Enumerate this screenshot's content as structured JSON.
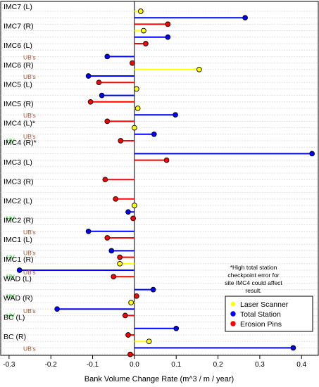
{
  "chart_data": {
    "type": "lollipop",
    "xlabel": "Bank Volume Change Rate (m^3 / m / year)",
    "xlim": [
      -0.32,
      0.44
    ],
    "xticks": [
      "-0.3",
      "-0.2",
      "-0.1",
      "0.0",
      "0.1",
      "0.2",
      "0.3",
      "0.4"
    ],
    "xtick_values": [
      -0.3,
      -0.2,
      -0.1,
      0.0,
      0.1,
      0.2,
      0.3,
      0.4
    ],
    "colors": {
      "laser": "#ffff00",
      "total": "#0000ff",
      "erosion": "#ff0000",
      "ub": "#a0522d",
      "hv": "#00cc00"
    },
    "legend": {
      "placement": "bottom-right",
      "entries": [
        {
          "label": "Laser Scanner",
          "color": "#ffff00"
        },
        {
          "label": "Total Station",
          "color": "#0000ff"
        },
        {
          "label": "Erosion Pins",
          "color": "#ff0000"
        }
      ]
    },
    "note": "*High total station checkpoint error for site IMC4 could affect result.",
    "sites": [
      {
        "label": "IMC7 (L)",
        "hv": "",
        "ub": "",
        "laser": 0.015,
        "total": 0.265,
        "erosion": 0.08
      },
      {
        "label": "IMC7 (R)",
        "hv": "",
        "ub": "",
        "laser": 0.022,
        "total": 0.08,
        "erosion": 0.027
      },
      {
        "label": "IMC6 (L)",
        "hv": "",
        "ub": "UB's",
        "laser": null,
        "total": -0.065,
        "erosion": -0.005
      },
      {
        "label": "IMC6 (R)",
        "hv": "",
        "ub": "UB's",
        "laser": 0.155,
        "total": -0.11,
        "erosion": -0.085
      },
      {
        "label": "IMC5 (L)",
        "hv": "",
        "ub": "",
        "laser": 0.005,
        "total": -0.078,
        "erosion": -0.105
      },
      {
        "label": "IMC5 (R)",
        "hv": "",
        "ub": "UB's",
        "laser": 0.008,
        "total": 0.098,
        "erosion": -0.065
      },
      {
        "label": "IMC4 (L)*",
        "hv": "HV",
        "ub": "UB's",
        "laser": 0.0,
        "total": 0.047,
        "erosion": -0.033
      },
      {
        "label": "IMC4 (R)*",
        "hv": "",
        "ub": "",
        "laser": null,
        "total": 0.425,
        "erosion": 0.077
      },
      {
        "label": "IMC3 (L)",
        "hv": "",
        "ub": "",
        "laser": null,
        "total": null,
        "erosion": -0.07
      },
      {
        "label": "IMC3 (R)",
        "hv": "",
        "ub": "",
        "laser": null,
        "total": null,
        "erosion": -0.045
      },
      {
        "label": "IMC2 (L)",
        "hv": "HV",
        "ub": "",
        "laser": 0.0,
        "total": -0.015,
        "erosion": -0.003
      },
      {
        "label": "IMC2 (R)",
        "hv": "",
        "ub": "UB's",
        "laser": null,
        "total": -0.11,
        "erosion": -0.065
      },
      {
        "label": "IMC1 (L)",
        "hv": "HV",
        "ub": "UB's",
        "laser": null,
        "total": -0.055,
        "erosion": -0.035
      },
      {
        "label": "IMC1 (R)",
        "hv": "HV",
        "ub": "UB's",
        "laser": -0.035,
        "total": -0.275,
        "erosion": -0.05
      },
      {
        "label": "WAD (L)",
        "hv": "HV",
        "ub": "",
        "laser": null,
        "total": 0.045,
        "erosion": 0.005
      },
      {
        "label": "WAD (R)",
        "hv": "HV",
        "ub": "UB's",
        "laser": -0.008,
        "total": -0.185,
        "erosion": -0.022
      },
      {
        "label": "BC (L)",
        "hv": "",
        "ub": "",
        "laser": null,
        "total": 0.1,
        "erosion": -0.015
      },
      {
        "label": "BC (R)",
        "hv": "",
        "ub": "UB's",
        "laser": 0.035,
        "total": 0.38,
        "erosion": -0.01
      }
    ]
  }
}
